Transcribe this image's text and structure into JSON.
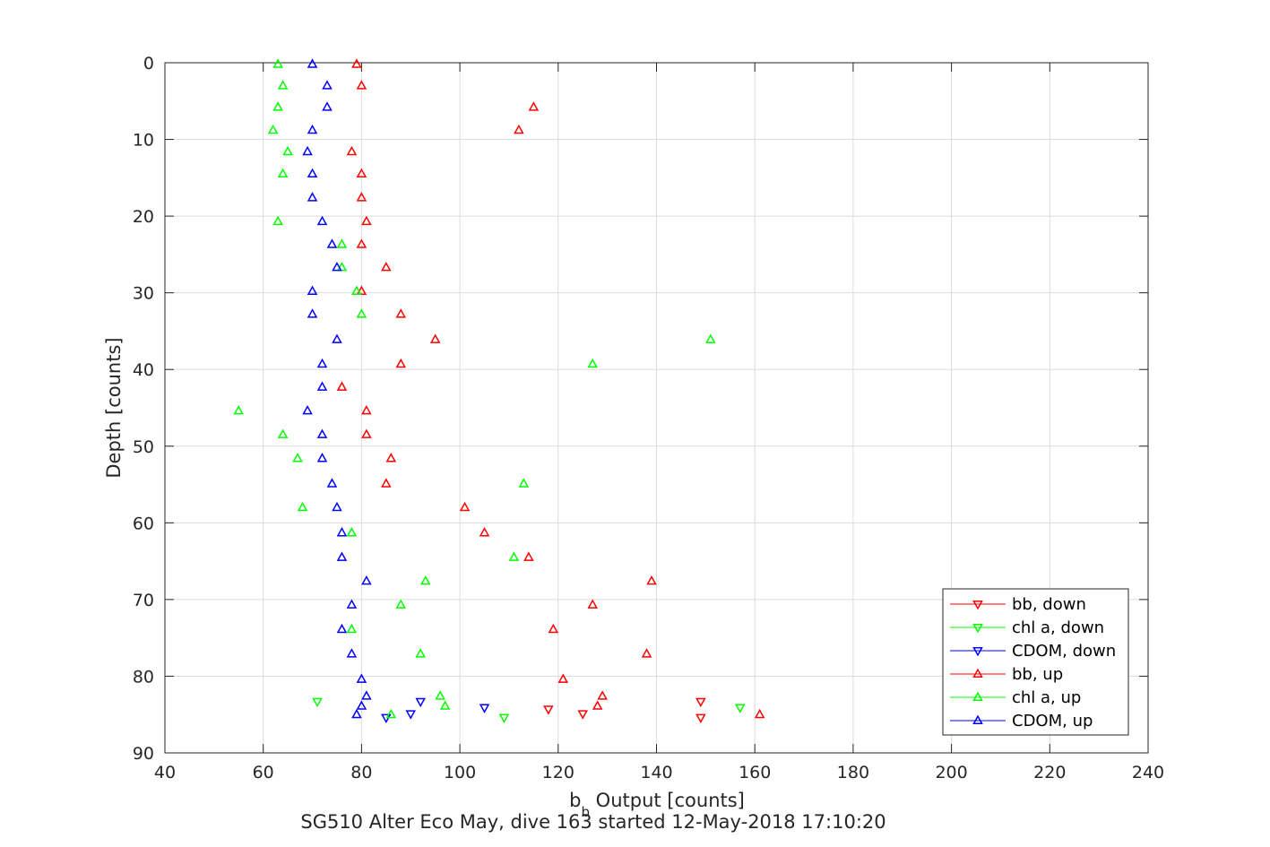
{
  "chart_data": {
    "type": "scatter",
    "xlabel_main": "b",
    "xlabel_sub": "b",
    "xlabel_rest": " Output [counts]",
    "ylabel": "Depth [counts]",
    "caption": "SG510 Alter Eco May, dive 163 started 12-May-2018 17:10:20",
    "xlim": [
      40,
      240
    ],
    "ylim": [
      0,
      90
    ],
    "y_reversed": true,
    "grid": true,
    "xticks": [
      "40",
      "60",
      "80",
      "100",
      "120",
      "140",
      "160",
      "180",
      "200",
      "220",
      "240"
    ],
    "yticks": [
      "0",
      "10",
      "20",
      "30",
      "40",
      "50",
      "60",
      "70",
      "80",
      "90"
    ],
    "legend_position": "bottom-right",
    "series": [
      {
        "name": "bb, down",
        "color": "#ff0000",
        "marker": "triangle-down",
        "points": [
          [
            149,
            83.3
          ],
          [
            118,
            84.3
          ],
          [
            125,
            84.9
          ],
          [
            149,
            85.4
          ]
        ]
      },
      {
        "name": "chl a, down",
        "color": "#00ff00",
        "marker": "triangle-down",
        "points": [
          [
            71,
            83.3
          ],
          [
            157,
            84.1
          ],
          [
            109,
            85.4
          ]
        ]
      },
      {
        "name": "CDOM, down",
        "color": "#0000ff",
        "marker": "triangle-down",
        "points": [
          [
            92,
            83.3
          ],
          [
            105,
            84.1
          ],
          [
            90,
            84.9
          ],
          [
            85,
            85.4
          ]
        ]
      },
      {
        "name": "bb, up",
        "color": "#ff0000",
        "marker": "triangle-up",
        "points": [
          [
            79,
            0.2
          ],
          [
            80,
            3
          ],
          [
            115,
            5.8
          ],
          [
            112,
            8.8
          ],
          [
            78,
            11.6
          ],
          [
            80,
            14.5
          ],
          [
            80,
            17.6
          ],
          [
            81,
            20.7
          ],
          [
            80,
            23.7
          ],
          [
            85,
            26.7
          ],
          [
            80,
            29.8
          ],
          [
            88,
            32.8
          ],
          [
            95,
            36.1
          ],
          [
            88,
            39.3
          ],
          [
            76,
            42.3
          ],
          [
            81,
            45.4
          ],
          [
            81,
            48.5
          ],
          [
            86,
            51.6
          ],
          [
            85,
            54.9
          ],
          [
            101,
            58
          ],
          [
            105,
            61.3
          ],
          [
            114,
            64.5
          ],
          [
            139,
            67.6
          ],
          [
            127,
            70.7
          ],
          [
            119,
            73.9
          ],
          [
            138,
            77.1
          ],
          [
            121,
            80.4
          ],
          [
            129,
            82.6
          ],
          [
            128,
            83.9
          ],
          [
            161,
            85
          ]
        ]
      },
      {
        "name": "chl a, up",
        "color": "#00ff00",
        "marker": "triangle-up",
        "points": [
          [
            63,
            0.2
          ],
          [
            64,
            3
          ],
          [
            63,
            5.8
          ],
          [
            62,
            8.8
          ],
          [
            65,
            11.6
          ],
          [
            64,
            14.5
          ],
          [
            63,
            20.7
          ],
          [
            76,
            23.7
          ],
          [
            76,
            26.7
          ],
          [
            79,
            29.8
          ],
          [
            80,
            32.8
          ],
          [
            151,
            36.1
          ],
          [
            127,
            39.3
          ],
          [
            55,
            45.4
          ],
          [
            64,
            48.5
          ],
          [
            67,
            51.6
          ],
          [
            113,
            54.9
          ],
          [
            68,
            58
          ],
          [
            78,
            61.3
          ],
          [
            111,
            64.5
          ],
          [
            93,
            67.6
          ],
          [
            88,
            70.7
          ],
          [
            78,
            73.9
          ],
          [
            92,
            77.1
          ],
          [
            96,
            82.6
          ],
          [
            97,
            83.9
          ],
          [
            86,
            85
          ]
        ]
      },
      {
        "name": "CDOM, up",
        "color": "#0000ff",
        "marker": "triangle-up",
        "points": [
          [
            70,
            0.2
          ],
          [
            73,
            3
          ],
          [
            73,
            5.8
          ],
          [
            70,
            8.8
          ],
          [
            69,
            11.6
          ],
          [
            70,
            14.5
          ],
          [
            70,
            17.6
          ],
          [
            72,
            20.7
          ],
          [
            74,
            23.7
          ],
          [
            75,
            26.7
          ],
          [
            70,
            29.8
          ],
          [
            70,
            32.8
          ],
          [
            75,
            36.1
          ],
          [
            72,
            39.3
          ],
          [
            72,
            42.3
          ],
          [
            69,
            45.4
          ],
          [
            72,
            48.5
          ],
          [
            72,
            51.6
          ],
          [
            74,
            54.9
          ],
          [
            75,
            58
          ],
          [
            76,
            61.3
          ],
          [
            76,
            64.5
          ],
          [
            81,
            67.6
          ],
          [
            78,
            70.7
          ],
          [
            76,
            73.9
          ],
          [
            78,
            77.1
          ],
          [
            80,
            80.4
          ],
          [
            81,
            82.6
          ],
          [
            80,
            83.9
          ],
          [
            79,
            85
          ]
        ]
      }
    ]
  }
}
